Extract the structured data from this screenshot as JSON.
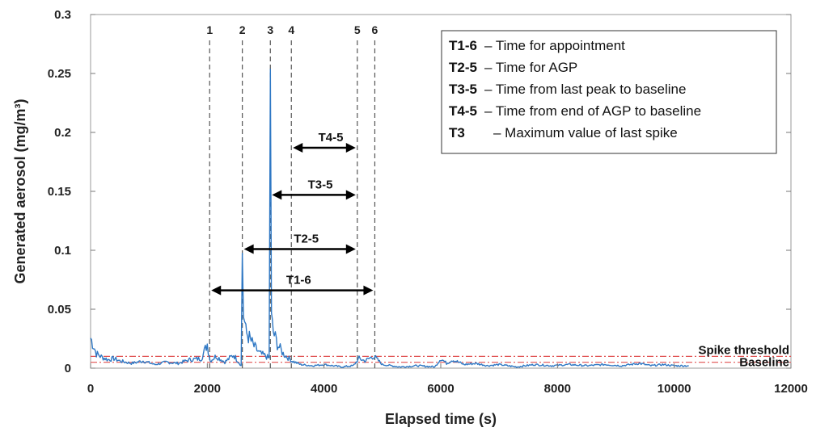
{
  "chart_data": {
    "type": "line",
    "xlabel": "Elapsed time (s)",
    "ylabel": "Generated aerosol (mg/m³)",
    "xlim": [
      0,
      12000
    ],
    "ylim": [
      0,
      0.3
    ],
    "xticks": [
      0,
      2000,
      4000,
      6000,
      8000,
      10000,
      12000
    ],
    "yticks": [
      0,
      0.05,
      0.1,
      0.15,
      0.2,
      0.25,
      0.3
    ],
    "xtick_labels": [
      "0",
      "2000",
      "4000",
      "6000",
      "8000",
      "10000",
      "12000"
    ],
    "ytick_labels": [
      "0",
      "0.05",
      "0.1",
      "0.15",
      "0.2",
      "0.25",
      "0.3"
    ],
    "grid": false,
    "series": [
      {
        "color": "#2f78c4",
        "x": [
          0,
          100,
          200,
          300,
          400,
          500,
          700,
          900,
          1100,
          1300,
          1500,
          1700,
          1900,
          2000,
          2050,
          2150,
          2300,
          2450,
          2580,
          2600,
          2620,
          2660,
          2720,
          2800,
          2900,
          3000,
          3060,
          3080,
          3100,
          3130,
          3200,
          3300,
          3400,
          3450,
          3600,
          3800,
          4000,
          4300,
          4500,
          4600,
          4700,
          4850,
          5000,
          5300,
          5600,
          5900,
          6000,
          6100,
          6200,
          6400,
          6600,
          6800,
          7000,
          7300,
          7600,
          7900,
          8200,
          8500,
          8800,
          9100,
          9400,
          9600,
          9800,
          10000,
          10250
        ],
        "y": [
          0.025,
          0.012,
          0.009,
          0.007,
          0.008,
          0.006,
          0.004,
          0.006,
          0.003,
          0.005,
          0.004,
          0.007,
          0.008,
          0.02,
          0.006,
          0.01,
          0.005,
          0.011,
          0.002,
          0.098,
          0.045,
          0.03,
          0.025,
          0.018,
          0.012,
          0.01,
          0.008,
          0.262,
          0.04,
          0.03,
          0.02,
          0.012,
          0.008,
          0.006,
          0.003,
          0.002,
          0.003,
          0.001,
          0.002,
          0.008,
          0.006,
          0.01,
          0.003,
          0.001,
          0.002,
          0.001,
          0.008,
          0.004,
          0.007,
          0.003,
          0.004,
          0.002,
          0.003,
          0.001,
          0.003,
          0.002,
          0.003,
          0.002,
          0.003,
          0.002,
          0.004,
          0.002,
          0.003,
          0.002,
          0.002
        ]
      }
    ],
    "thresholds": [
      {
        "label": "Spike threshold",
        "y": 0.01,
        "color": "#e05050"
      },
      {
        "label": "Baseline",
        "y": 0.005,
        "color": "#e05050"
      }
    ],
    "markers": [
      {
        "label": "1",
        "x": 2040
      },
      {
        "label": "2",
        "x": 2600
      },
      {
        "label": "3",
        "x": 3080
      },
      {
        "label": "4",
        "x": 3440
      },
      {
        "label": "5",
        "x": 4570
      },
      {
        "label": "6",
        "x": 4870
      }
    ],
    "intervals": [
      {
        "label": "T4-5",
        "x0": 3440,
        "x1": 4570,
        "y": 0.187
      },
      {
        "label": "T3-5",
        "x0": 3080,
        "x1": 4570,
        "y": 0.147
      },
      {
        "label": "T2-5",
        "x0": 2600,
        "x1": 4570,
        "y": 0.101
      },
      {
        "label": "T1-6",
        "x0": 2040,
        "x1": 4870,
        "y": 0.066
      }
    ],
    "legend_position": "top-right",
    "legend": [
      {
        "key": "T1-6",
        "text": "– Time for appointment"
      },
      {
        "key": "T2-5",
        "text": "– Time for AGP"
      },
      {
        "key": "T3-5",
        "text": "– Time from last peak to baseline"
      },
      {
        "key": "T4-5",
        "text": "– Time from end of AGP to baseline"
      },
      {
        "key": "T3",
        "text": "– Maximum value of last spike"
      }
    ]
  }
}
